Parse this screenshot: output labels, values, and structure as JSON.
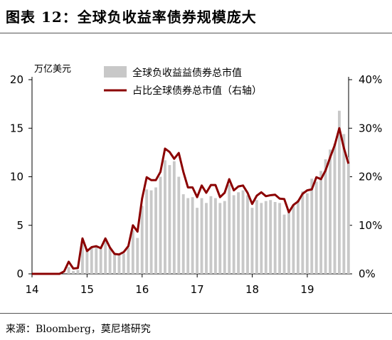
{
  "header": {
    "title": "图表 12：全球负收益率债券规模庞大"
  },
  "footer": {
    "source": "来源：Bloomberg，莫尼塔研究"
  },
  "chart_data": {
    "type": "bar+line",
    "unit_left": "万亿美元",
    "x_tick_labels": [
      "14",
      "15",
      "16",
      "17",
      "18",
      "19"
    ],
    "y_left_ticks": [
      "0",
      "5",
      "10",
      "15",
      "20"
    ],
    "y_right_ticks": [
      "0%",
      "10%",
      "20%",
      "30%",
      "40%"
    ],
    "ylim_left": [
      0,
      20
    ],
    "ylim_right": [
      0,
      0.4
    ],
    "legend": {
      "bar_label": "全球负收益益债券总市值",
      "line_label": "占比全球债券总市值（右轴）"
    },
    "colors": {
      "bar": "#c8c8c8",
      "line": "#8b0000"
    },
    "x_start": 2014.0,
    "x_step_years": 0.0833,
    "bar_values": [
      0,
      0,
      0,
      0,
      0,
      0,
      0,
      0,
      0.7,
      0.3,
      0.4,
      3.2,
      2.6,
      2.8,
      2.8,
      2.6,
      3.4,
      2.7,
      2.0,
      2.0,
      2.1,
      2.7,
      4.5,
      3.7,
      7.0,
      8.7,
      8.6,
      8.9,
      10.0,
      11.7,
      11.2,
      11.6,
      10.0,
      8.2,
      7.8,
      7.9,
      6.8,
      7.8,
      7.3,
      8.0,
      7.8,
      7.3,
      7.5,
      9.2,
      8.1,
      8.4,
      8.6,
      8.1,
      6.8,
      7.6,
      7.3,
      7.5,
      7.6,
      7.4,
      7.3,
      6.1,
      6.6,
      7.1,
      7.6,
      8.5,
      8.3,
      9.8,
      9.5,
      10.6,
      11.8,
      12.8,
      13.4,
      16.8,
      14.4,
      12.0
    ],
    "ratio_values": [
      0,
      0,
      0,
      0,
      0,
      0,
      0,
      0.005,
      0.025,
      0.011,
      0.012,
      0.073,
      0.047,
      0.055,
      0.057,
      0.053,
      0.073,
      0.054,
      0.041,
      0.04,
      0.045,
      0.057,
      0.1,
      0.087,
      0.155,
      0.199,
      0.193,
      0.193,
      0.21,
      0.258,
      0.251,
      0.237,
      0.249,
      0.21,
      0.178,
      0.178,
      0.158,
      0.182,
      0.167,
      0.183,
      0.183,
      0.158,
      0.167,
      0.195,
      0.172,
      0.18,
      0.182,
      0.167,
      0.144,
      0.161,
      0.168,
      0.16,
      0.162,
      0.163,
      0.155,
      0.154,
      0.127,
      0.142,
      0.149,
      0.165,
      0.172,
      0.174,
      0.199,
      0.195,
      0.213,
      0.24,
      0.265,
      0.3,
      0.259,
      0.227
    ]
  }
}
